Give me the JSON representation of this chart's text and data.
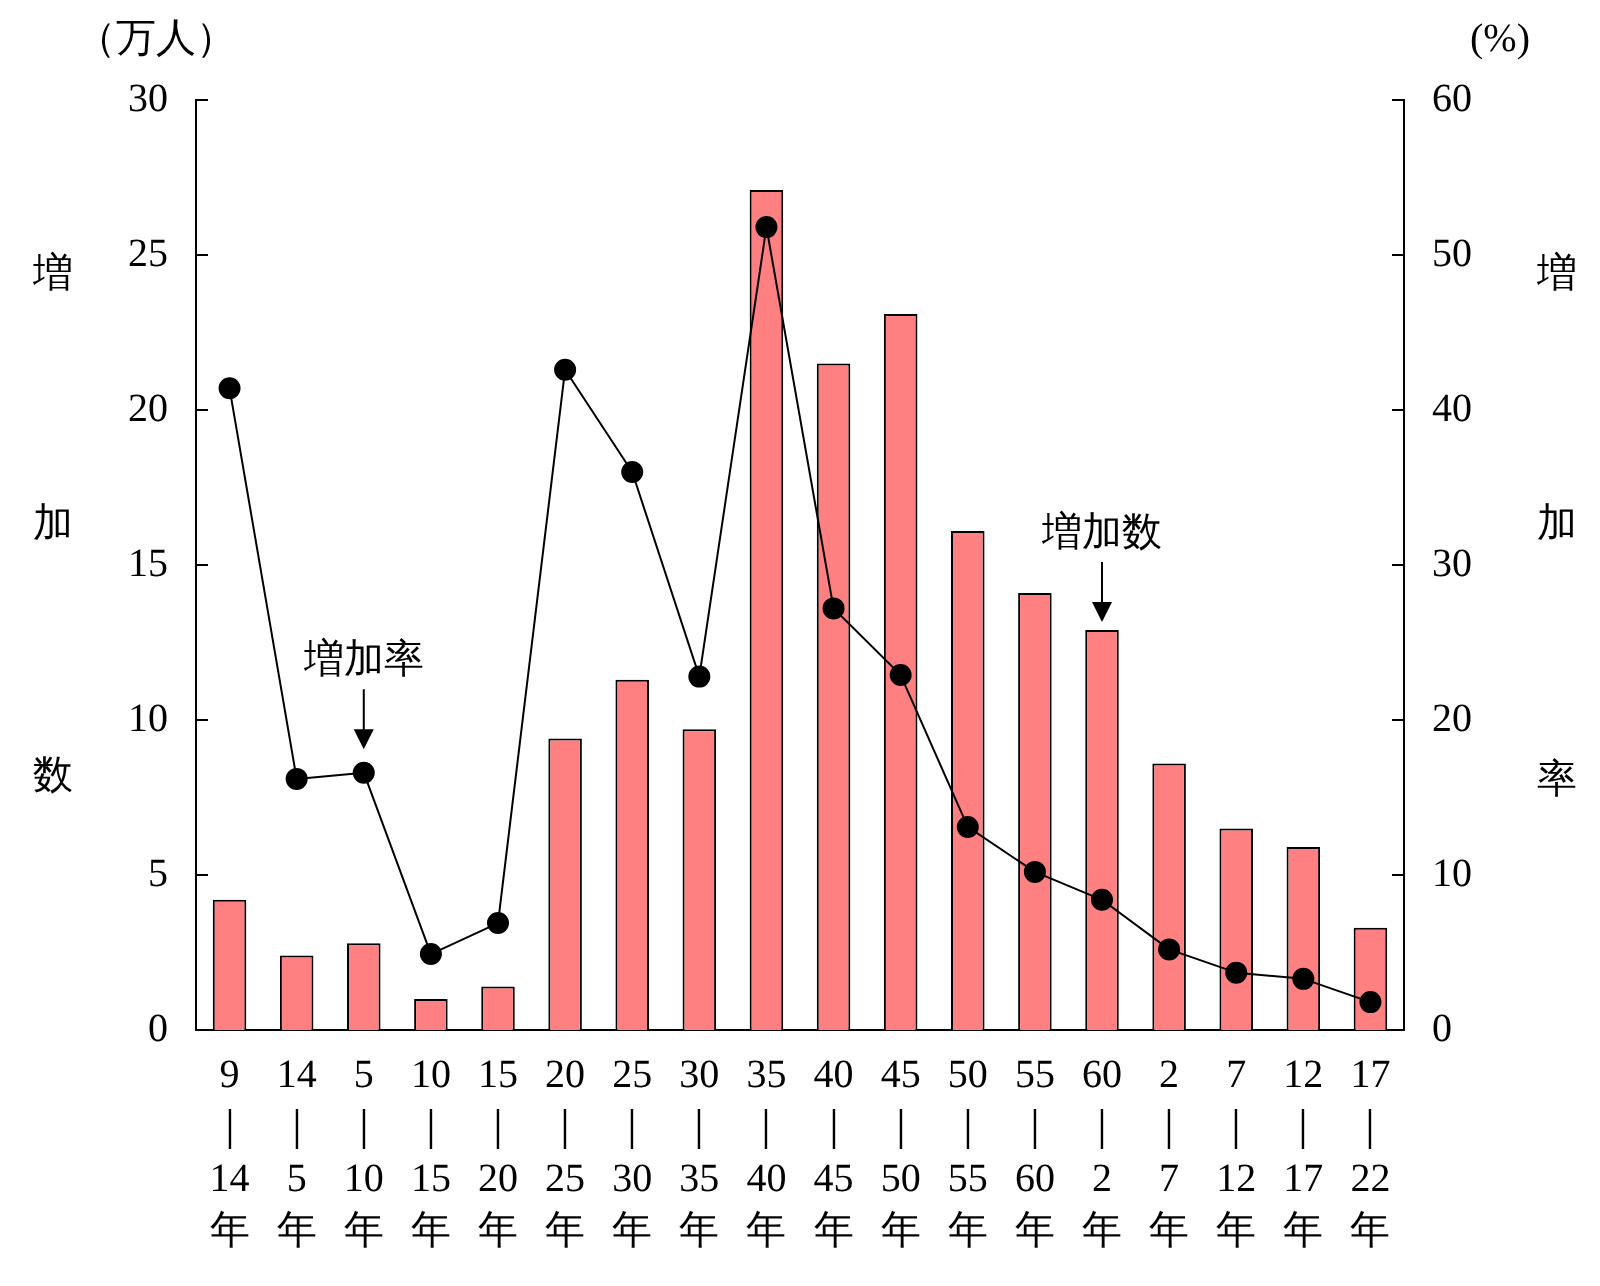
{
  "chart_data": {
    "type": "bar",
    "categories": [
      "9\n｜\n14\n年",
      "14\n｜\n5\n年",
      "5\n｜\n10\n年",
      "10\n｜\n15\n年",
      "15\n｜\n20\n年",
      "20\n｜\n25\n年",
      "25\n｜\n30\n年",
      "30\n｜\n35\n年",
      "35\n｜\n40\n年",
      "40\n｜\n45\n年",
      "45\n｜\n50\n年",
      "50\n｜\n55\n年",
      "55\n｜\n60\n年",
      "60\n｜\n2\n年",
      "2\n｜\n7\n年",
      "7\n｜\n12\n年",
      "12\n｜\n17\n年",
      "17\n｜\n22\n年"
    ],
    "series": [
      {
        "color": "#ff8080",
        "values": [
          4.2,
          2.4,
          2.8,
          1.0,
          1.4,
          9.4,
          11.3,
          9.7,
          27.1,
          21.5,
          23.1,
          16.1,
          14.1,
          12.9,
          8.6,
          6.5,
          5.9,
          3.3
        ]
      },
      {
        "type": "line",
        "axis": "y2",
        "color": "#000000",
        "values": [
          41.4,
          16.2,
          16.6,
          4.9,
          6.9,
          42.6,
          36.0,
          22.8,
          51.8,
          27.2,
          22.9,
          13.1,
          10.2,
          8.4,
          5.2,
          3.7,
          3.3,
          1.8
        ]
      }
    ],
    "ylabel": "増加数",
    "y2label": "増加率",
    "ylim": [
      0,
      30
    ],
    "yticks": [
      0,
      5,
      10,
      15,
      20,
      25,
      30
    ],
    "y2lim": [
      0,
      60
    ],
    "y2ticks": [
      0,
      10,
      20,
      30,
      40,
      50,
      60
    ],
    "annotations": [
      "（万人）",
      "(%)",
      {
        "text": "増加率",
        "x": "5\n｜\n10\n年",
        "y": 8.8
      },
      {
        "text": "増加数",
        "x": "60\n｜\n2\n年",
        "y": 12.9
      }
    ],
    "marker": "circle",
    "line_style": "solid",
    "grid": false,
    "legend": false
  }
}
